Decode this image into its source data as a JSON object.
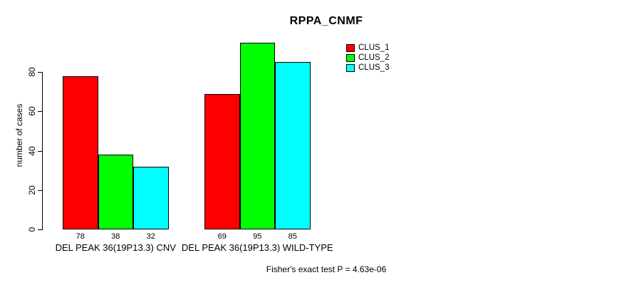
{
  "title": "RPPA_CNMF",
  "chart_data": {
    "type": "bar",
    "title": "RPPA_CNMF",
    "xlabel": "",
    "ylabel": "number of cases",
    "ylim": [
      0,
      95
    ],
    "yticks": [
      0,
      20,
      40,
      60,
      80
    ],
    "grid": false,
    "legend_position": "top-right",
    "categories": [
      "DEL PEAK 36(19P13.3) CNV",
      "DEL PEAK 36(19P13.3) WILD-TYPE"
    ],
    "series": [
      {
        "name": "CLUS_1",
        "color": "#ff0000",
        "values": [
          78,
          69
        ]
      },
      {
        "name": "CLUS_2",
        "color": "#00ff00",
        "values": [
          38,
          95
        ]
      },
      {
        "name": "CLUS_3",
        "color": "#00ffff",
        "values": [
          32,
          85
        ]
      }
    ],
    "bar_value_labels": [
      [
        "78",
        "38",
        "32"
      ],
      [
        "69",
        "95",
        "85"
      ]
    ]
  },
  "footer": {
    "note": "Fisher's exact test P = 4.63e-06"
  },
  "colors": {
    "background": "#ffffff",
    "axis": "#000000",
    "text": "#000000",
    "clus_1": "#ff0000",
    "clus_2": "#00ff00",
    "clus_3": "#00ffff"
  }
}
